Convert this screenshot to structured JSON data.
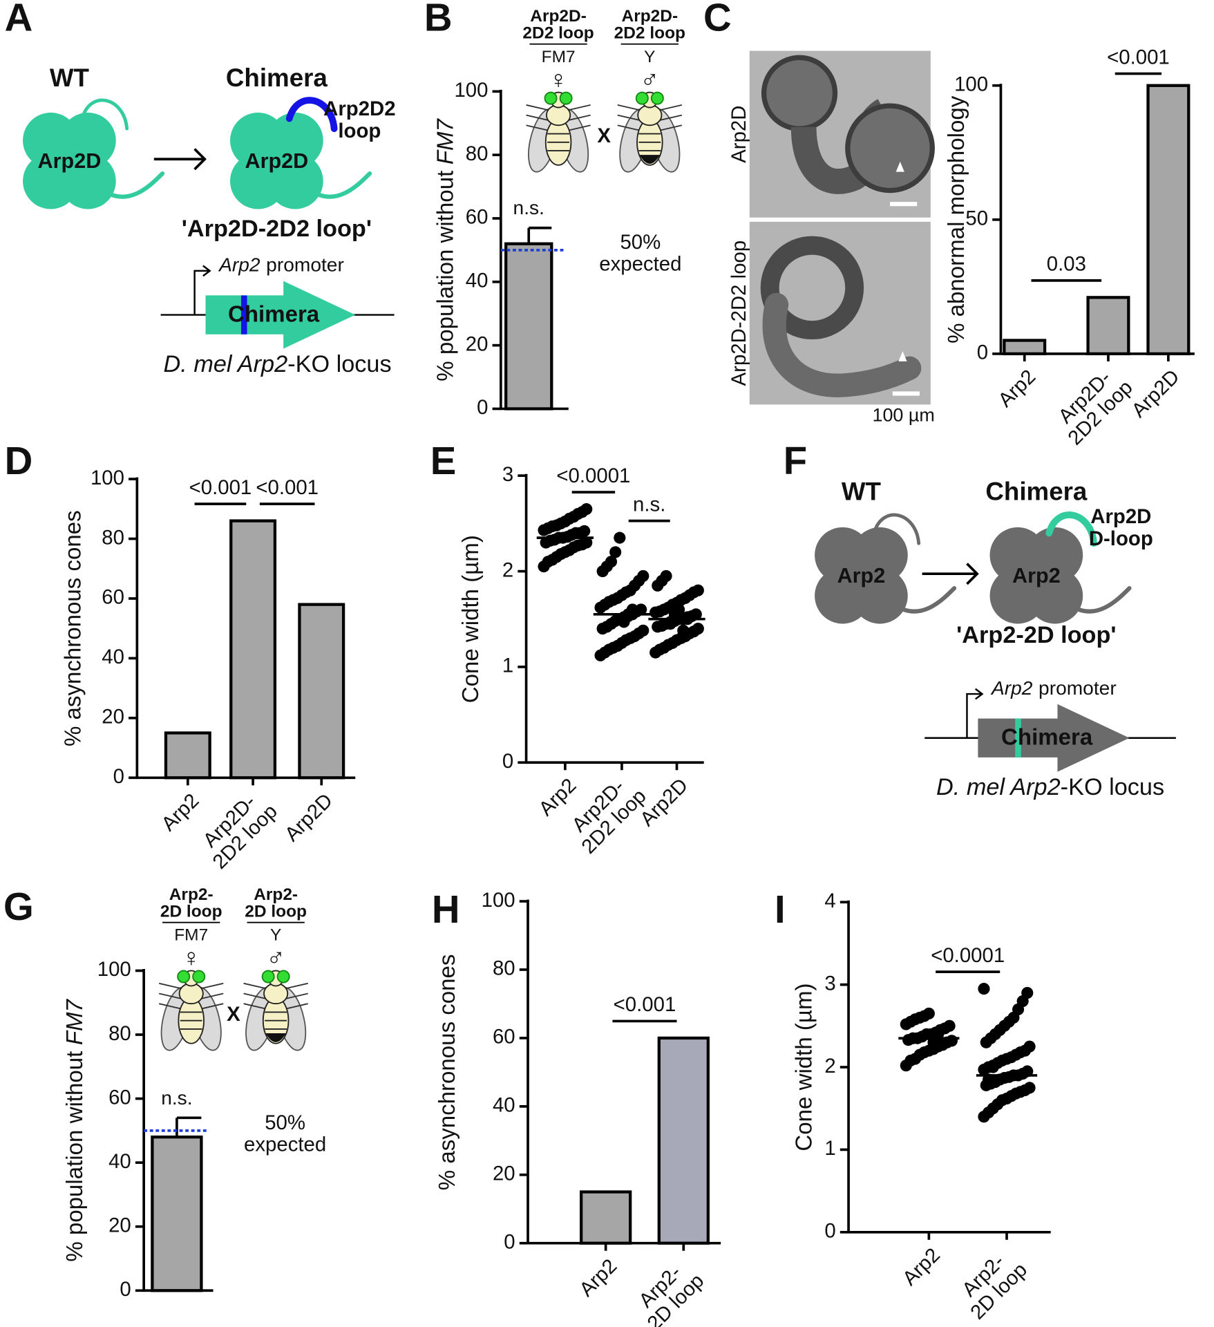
{
  "panel_labels": [
    "A",
    "B",
    "C",
    "D",
    "E",
    "F",
    "G",
    "H",
    "I"
  ],
  "panel_a": {
    "wt": "WT",
    "chimera": "Chimera",
    "protein": "Arp2D",
    "loop": [
      "Arp2D2",
      "loop"
    ],
    "name": "'Arp2D-2D2 loop'",
    "promoter": [
      {
        "text": "Arp2",
        "italic": true
      },
      {
        "text": "promoter",
        "italic": false
      }
    ],
    "construct": "Chimera",
    "locus": [
      {
        "text": "D. mel Arp2",
        "italic": true
      },
      {
        "text": "-KO locus",
        "italic": false
      }
    ],
    "body_color": "#33cc9f",
    "loop_color": "#1414e6"
  },
  "panel_f": {
    "wt": "WT",
    "chimera": "Chimera",
    "protein": "Arp2",
    "loop": [
      "Arp2D",
      "D-loop"
    ],
    "name": "'Arp2-2D loop'",
    "promoter": [
      {
        "text": "Arp2",
        "italic": true
      },
      {
        "text": "promoter",
        "italic": false
      }
    ],
    "construct": "Chimera",
    "locus": [
      {
        "text": "D. mel Arp2",
        "italic": true
      },
      {
        "text": "-KO locus",
        "italic": false
      }
    ],
    "body_color": "#6b6b6b",
    "loop_color": "#33cc9f"
  },
  "panel_c_images": {
    "top": "Arp2D",
    "bottom": "Arp2D-2D2 loop",
    "scale_bar": "100 µm"
  },
  "chart_data": [
    {
      "type": "bar",
      "categories": [
        null
      ],
      "values": [
        52
      ],
      "errors": [
        5
      ],
      "color": "#a6a6a6",
      "ylabel": [
        {
          "text": "% population without",
          "italic": false
        },
        {
          "text": "FM7",
          "italic": true
        }
      ],
      "ylim": [
        0,
        100
      ],
      "yticks": [
        0,
        20,
        40,
        60,
        80,
        100
      ],
      "reference_line": {
        "value": 50,
        "color": "#1f3fd8",
        "label": [
          "50%",
          "expected"
        ]
      },
      "annotation": "n.s.",
      "cross": {
        "female": {
          "genotype": [
            "Arp2D-",
            "2D2 loop"
          ],
          "balancer": "FM7",
          "symbol": "♀"
        },
        "male": {
          "genotype": [
            "Arp2D-",
            "2D2 loop"
          ],
          "balancer": "Y",
          "symbol": "♂"
        },
        "times": "X",
        "genotype_color": "#2ca02c"
      }
    },
    {
      "type": "bar",
      "categories": [
        [
          "Arp2"
        ],
        [
          "Arp2D-",
          "2D2 loop"
        ],
        [
          "Arp2D"
        ]
      ],
      "values": [
        5,
        21,
        100
      ],
      "color": "#a6a6a6",
      "ylabel": [
        {
          "text": "% abnormal morphology",
          "italic": false
        }
      ],
      "ylim": [
        0,
        100
      ],
      "yticks": [
        0,
        50,
        100
      ],
      "comparisons": [
        {
          "from": 0,
          "to": 1,
          "label": "0.03"
        },
        {
          "from": 1,
          "to": 2,
          "label": "<0.001"
        }
      ]
    },
    {
      "type": "bar",
      "categories": [
        [
          "Arp2"
        ],
        [
          "Arp2D-",
          "2D2 loop"
        ],
        [
          "Arp2D"
        ]
      ],
      "values": [
        15,
        86,
        58
      ],
      "color": "#a6a6a6",
      "ylabel": [
        {
          "text": "% asynchronous cones",
          "italic": false
        }
      ],
      "ylim": [
        0,
        100
      ],
      "yticks": [
        0,
        20,
        40,
        60,
        80,
        100
      ],
      "comparisons": [
        {
          "from": 0,
          "to": 1,
          "label": "<0.001"
        },
        {
          "from": 1,
          "to": 2,
          "label": "<0.001"
        }
      ]
    },
    {
      "type": "strip",
      "categories": [
        [
          "Arp2"
        ],
        [
          "Arp2D-",
          "2D2 loop"
        ],
        [
          "Arp2D"
        ]
      ],
      "groups": [
        [
          2.05,
          2.1,
          2.12,
          2.15,
          2.18,
          2.2,
          2.22,
          2.25,
          2.27,
          2.28,
          2.3,
          2.3,
          2.32,
          2.33,
          2.35,
          2.35,
          2.36,
          2.38,
          2.4,
          2.4,
          2.42,
          2.43,
          2.45,
          2.47,
          2.48,
          2.5,
          2.52,
          2.55,
          2.57,
          2.6,
          2.62,
          2.65
        ],
        [
          1.12,
          1.15,
          1.18,
          1.2,
          1.22,
          1.25,
          1.28,
          1.3,
          1.32,
          1.35,
          1.38,
          1.4,
          1.42,
          1.45,
          1.48,
          1.5,
          1.52,
          1.55,
          1.55,
          1.58,
          1.6,
          1.62,
          1.65,
          1.68,
          1.7,
          1.72,
          1.75,
          1.78,
          1.8,
          1.85,
          1.9,
          1.95,
          2.0,
          2.05,
          2.1,
          2.2,
          2.35,
          1.47,
          1.53,
          1.6
        ],
        [
          1.15,
          1.18,
          1.2,
          1.23,
          1.25,
          1.28,
          1.3,
          1.32,
          1.35,
          1.37,
          1.4,
          1.42,
          1.43,
          1.45,
          1.47,
          1.48,
          1.5,
          1.5,
          1.52,
          1.53,
          1.55,
          1.57,
          1.58,
          1.6,
          1.62,
          1.65,
          1.67,
          1.7,
          1.72,
          1.75,
          1.78,
          1.8,
          1.85,
          1.9,
          1.95,
          1.45,
          1.55,
          1.6,
          1.38,
          1.5
        ]
      ],
      "medians": [
        2.35,
        1.55,
        1.5
      ],
      "color": "#000000",
      "ylabel": [
        {
          "text": "Cone width (µm)",
          "italic": false
        }
      ],
      "ylim": [
        0,
        3
      ],
      "yticks": [
        0,
        1,
        2,
        3
      ],
      "comparisons": [
        {
          "from": 0,
          "to": 1,
          "label": "<0.0001"
        },
        {
          "from": 1,
          "to": 2,
          "label": "n.s."
        }
      ]
    },
    {
      "type": "bar",
      "categories": [
        null
      ],
      "values": [
        48
      ],
      "errors": [
        6
      ],
      "color": "#a6a6a6",
      "ylabel": [
        {
          "text": "% population without",
          "italic": false
        },
        {
          "text": "FM7",
          "italic": true
        }
      ],
      "ylim": [
        0,
        100
      ],
      "yticks": [
        0,
        20,
        40,
        60,
        80,
        100
      ],
      "reference_line": {
        "value": 50,
        "color": "#1f3fd8",
        "label": [
          "50%",
          "expected"
        ]
      },
      "annotation": "n.s.",
      "cross": {
        "female": {
          "genotype": [
            "Arp2-",
            "2D loop"
          ],
          "balancer": "FM7",
          "symbol": "♀"
        },
        "male": {
          "genotype": [
            "Arp2-",
            "2D loop"
          ],
          "balancer": "Y",
          "symbol": "♂"
        },
        "times": "X",
        "genotype_color": "#2ca02c"
      }
    },
    {
      "type": "bar",
      "categories": [
        [
          "Arp2"
        ],
        [
          "Arp2-",
          "2D loop"
        ]
      ],
      "values": [
        15,
        60
      ],
      "colors": [
        "#a6a6a6",
        "#a8a9b8"
      ],
      "ylabel": [
        {
          "text": "% asynchronous cones",
          "italic": false
        }
      ],
      "ylim": [
        0,
        100
      ],
      "yticks": [
        0,
        20,
        40,
        60,
        80,
        100
      ],
      "comparisons": [
        {
          "from": 0,
          "to": 1,
          "label": "<0.001"
        }
      ]
    },
    {
      "type": "strip",
      "categories": [
        [
          "Arp2"
        ],
        [
          "Arp2-",
          "2D loop"
        ]
      ],
      "groups": [
        [
          2.02,
          2.08,
          2.1,
          2.15,
          2.18,
          2.2,
          2.22,
          2.25,
          2.27,
          2.3,
          2.32,
          2.33,
          2.35,
          2.35,
          2.37,
          2.4,
          2.4,
          2.42,
          2.45,
          2.47,
          2.5,
          2.52,
          2.55,
          2.58,
          2.6,
          2.62,
          2.65,
          2.3,
          2.4,
          2.28
        ],
        [
          1.4,
          1.45,
          1.5,
          1.55,
          1.6,
          1.62,
          1.65,
          1.68,
          1.7,
          1.72,
          1.75,
          1.78,
          1.8,
          1.82,
          1.85,
          1.87,
          1.88,
          1.9,
          1.9,
          1.92,
          1.95,
          1.97,
          2.0,
          2.02,
          2.05,
          2.08,
          2.1,
          2.12,
          2.15,
          2.18,
          2.2,
          2.25,
          2.3,
          2.35,
          2.4,
          2.45,
          2.5,
          2.55,
          2.6,
          2.7,
          2.8,
          2.9,
          2.95,
          1.85,
          2.0
        ]
      ],
      "medians": [
        2.35,
        1.9
      ],
      "color": "#000000",
      "ylabel": [
        {
          "text": "Cone width (µm)",
          "italic": false
        }
      ],
      "ylim": [
        0,
        4
      ],
      "yticks": [
        0,
        1,
        2,
        3,
        4
      ],
      "comparisons": [
        {
          "from": 0,
          "to": 1,
          "label": "<0.0001"
        }
      ]
    }
  ]
}
